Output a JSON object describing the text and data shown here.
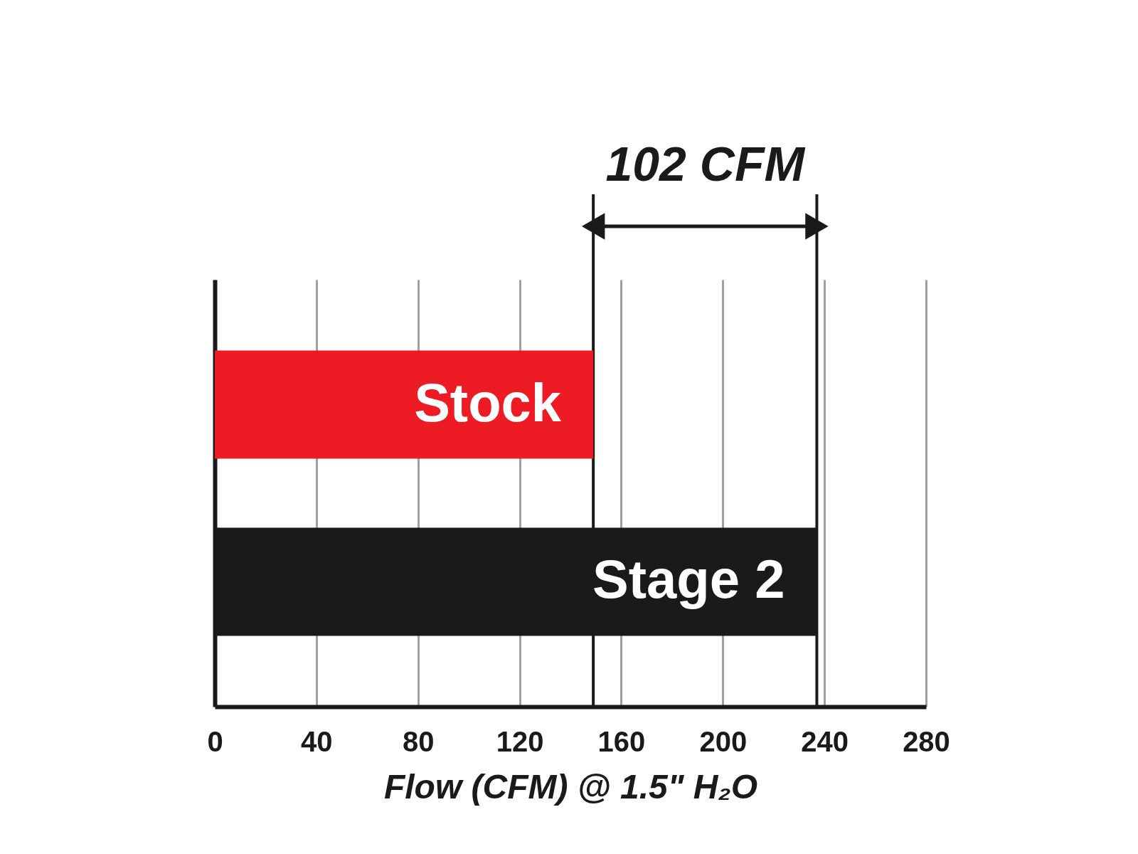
{
  "chart_data": {
    "type": "bar",
    "orientation": "horizontal",
    "categories": [
      "Stock",
      "Stage 2"
    ],
    "values": [
      149,
      237
    ],
    "colors": [
      "#ed1c24",
      "#1a1a1a"
    ],
    "xlabel": "Flow (CFM) @ 1.5\" H₂O",
    "xlim": [
      0,
      280
    ],
    "xticks": [
      0,
      40,
      80,
      120,
      160,
      200,
      240,
      280
    ],
    "grid": "x",
    "tick_labels": "x",
    "ref_lines": [
      {
        "axis": "x",
        "value": 149,
        "color": "#1a1a1a"
      },
      {
        "axis": "x",
        "value": 237,
        "color": "#1a1a1a"
      }
    ],
    "annotations": [
      "102 CFM"
    ]
  }
}
